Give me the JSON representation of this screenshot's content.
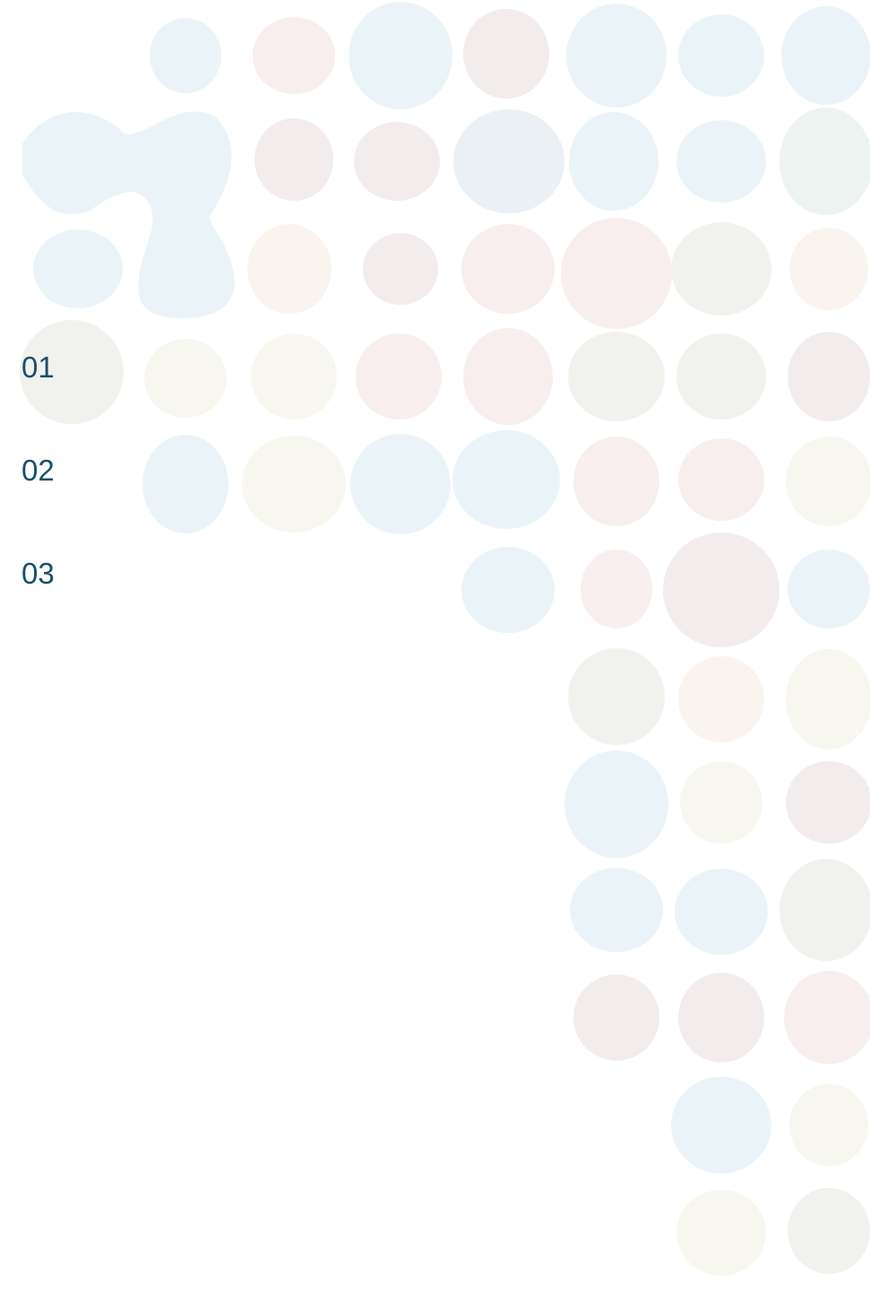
{
  "items": [
    "01",
    "02",
    "03"
  ]
}
